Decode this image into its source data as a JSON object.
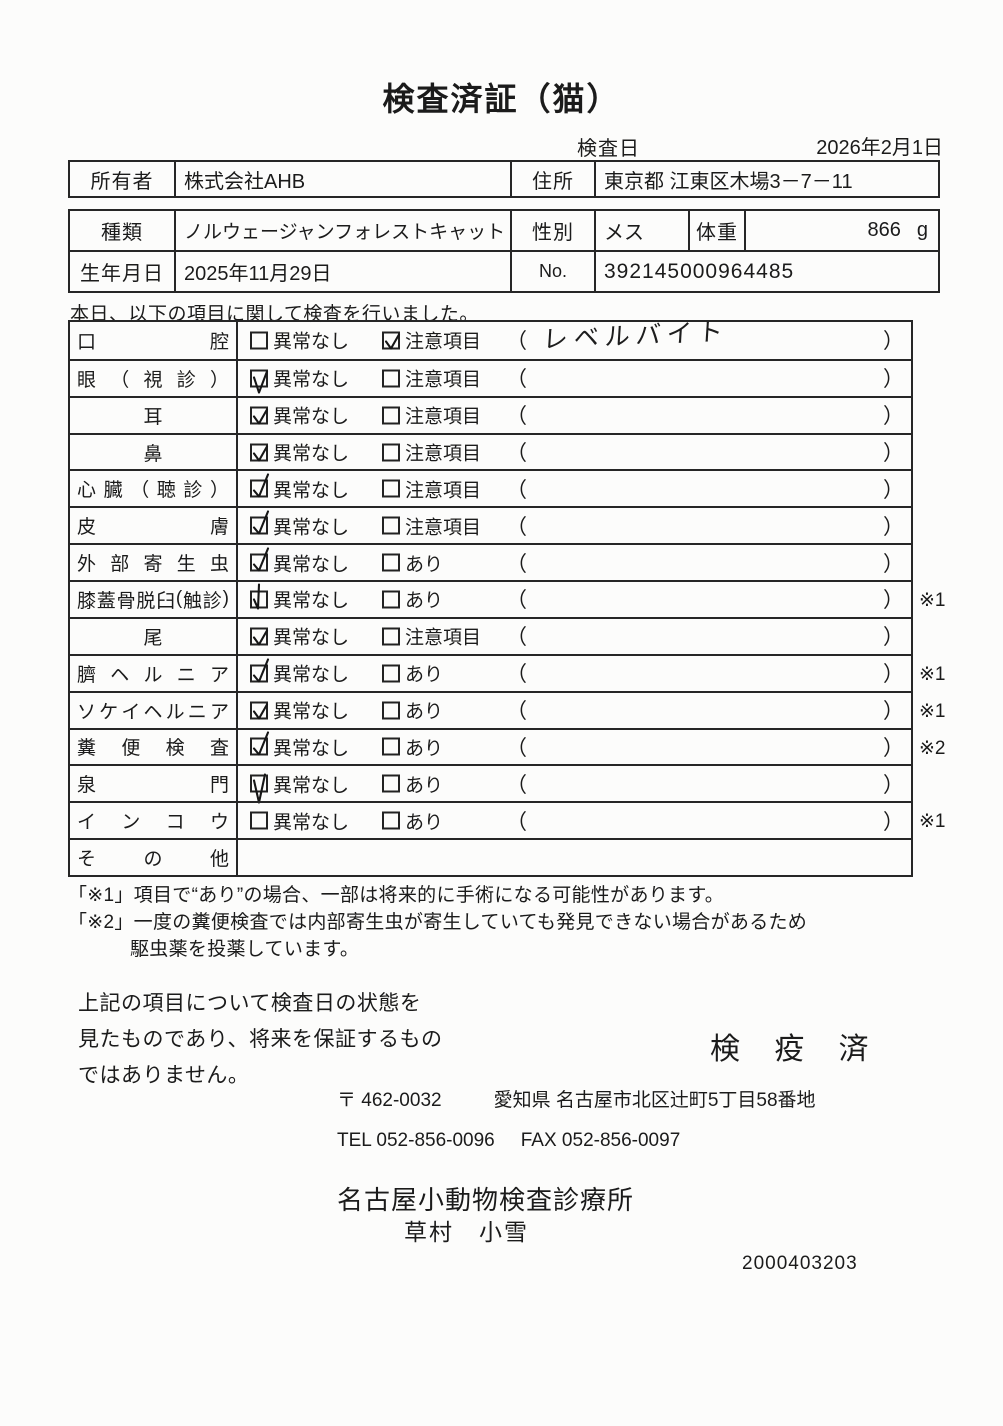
{
  "title": "検査済証（猫）",
  "exam_date": {
    "label": "検査日",
    "value": "2026年2月1日"
  },
  "owner": {
    "owner_label": "所有者",
    "owner_value": "株式会社AHB",
    "address_label": "住所",
    "address_value": "東京都 江東区木場3－7－11"
  },
  "pet": {
    "kind_label": "種類",
    "kind_value": "ノルウェージャンフォレストキャット",
    "sex_label": "性別",
    "sex_value": "メス",
    "weight_label": "体重",
    "weight_value": "866",
    "weight_unit": "g",
    "birth_label": "生年月日",
    "birth_value": "2025年11月29日",
    "no_label": "No.",
    "no_value": "392145000964485"
  },
  "intro": "本日、以下の項目に関して検査を行いました。",
  "exam_table": {
    "rows": [
      {
        "label": "口腔",
        "align": "justify",
        "opt1_label": "異常なし",
        "opt1_checked": false,
        "opt2_label": "注意項目",
        "opt2_checked": true,
        "value": "レベルバイト",
        "note": "",
        "ink": 1
      },
      {
        "label": "眼（視診）",
        "align": "justify",
        "opt1_label": "異常なし",
        "opt1_checked": true,
        "opt2_label": "注意項目",
        "opt2_checked": false,
        "value": "",
        "note": "",
        "ink": 2
      },
      {
        "label": "耳",
        "align": "center",
        "opt1_label": "異常なし",
        "opt1_checked": true,
        "opt2_label": "注意項目",
        "opt2_checked": false,
        "value": "",
        "note": "",
        "ink": 1
      },
      {
        "label": "鼻",
        "align": "center",
        "opt1_label": "異常なし",
        "opt1_checked": true,
        "opt2_label": "注意項目",
        "opt2_checked": false,
        "value": "",
        "note": "",
        "ink": 1
      },
      {
        "label": "心臓（聴診）",
        "align": "justify",
        "opt1_label": "異常なし",
        "opt1_checked": true,
        "opt2_label": "注意項目",
        "opt2_checked": false,
        "value": "",
        "note": "",
        "ink": 3
      },
      {
        "label": "皮膚",
        "align": "justify",
        "opt1_label": "異常なし",
        "opt1_checked": true,
        "opt2_label": "注意項目",
        "opt2_checked": false,
        "value": "",
        "note": "",
        "ink": 3
      },
      {
        "label": "外部寄生虫",
        "align": "justify",
        "opt1_label": "異常なし",
        "opt1_checked": true,
        "opt2_label": "あり",
        "opt2_checked": false,
        "value": "",
        "note": "",
        "ink": 3
      },
      {
        "label": "膝蓋骨脱臼(触診)",
        "align": "justify",
        "opt1_label": "異常なし",
        "opt1_checked": true,
        "opt2_label": "あり",
        "opt2_checked": false,
        "value": "",
        "note": "※1",
        "ink": 5
      },
      {
        "label": "尾",
        "align": "center",
        "opt1_label": "異常なし",
        "opt1_checked": true,
        "opt2_label": "注意項目",
        "opt2_checked": false,
        "value": "",
        "note": "",
        "ink": 1
      },
      {
        "label": "臍ヘルニア",
        "align": "justify",
        "opt1_label": "異常なし",
        "opt1_checked": true,
        "opt2_label": "あり",
        "opt2_checked": false,
        "value": "",
        "note": "※1",
        "ink": 3
      },
      {
        "label": "ソケイヘルニア",
        "align": "justify",
        "opt1_label": "異常なし",
        "opt1_checked": true,
        "opt2_label": "あり",
        "opt2_checked": false,
        "value": "",
        "note": "※1",
        "ink": 1
      },
      {
        "label": "糞便検査",
        "align": "justify",
        "opt1_label": "異常なし",
        "opt1_checked": true,
        "opt2_label": "あり",
        "opt2_checked": false,
        "value": "",
        "note": "※2",
        "ink": 3
      },
      {
        "label": "泉門",
        "align": "justify",
        "opt1_label": "異常なし",
        "opt1_checked": true,
        "opt2_label": "あり",
        "opt2_checked": false,
        "value": "",
        "note": "",
        "ink": 4
      },
      {
        "label": "インコウ",
        "align": "justify",
        "opt1_label": "異常なし",
        "opt1_checked": false,
        "opt2_label": "あり",
        "opt2_checked": false,
        "value": "",
        "note": "※1",
        "ink": 0
      },
      {
        "label": "その他",
        "align": "justify",
        "opt1_label": null,
        "opt1_checked": false,
        "opt2_label": null,
        "opt2_checked": false,
        "value": null,
        "note": "",
        "ink": 0
      }
    ],
    "paren_open": "（",
    "paren_close": "）"
  },
  "footnotes": [
    "「※1」項目で“あり”の場合、一部は将来的に手術になる可能性があります。",
    "「※2」一度の糞便検査では内部寄生虫が寄生していても発見できない場合があるため",
    "駆虫薬を投薬しています。"
  ],
  "disclaimer": [
    "上記の項目について検査日の状態を",
    "見たものであり、将来を保証するもの",
    "ではありません。"
  ],
  "stamp": "検 疫 済",
  "clinic": {
    "postal": "〒 462-0032",
    "address": "愛知県 名古屋市北区辻町5丁目58番地",
    "tel": "TEL 052-856-0096",
    "fax": "FAX 052-856-0097",
    "name": "名古屋小動物検査診療所",
    "vet": "草村　小雪",
    "code": "2000403203"
  },
  "colors": {
    "ink": "#1b1b1b",
    "border": "#262626",
    "paper": "#fcfcfb"
  }
}
